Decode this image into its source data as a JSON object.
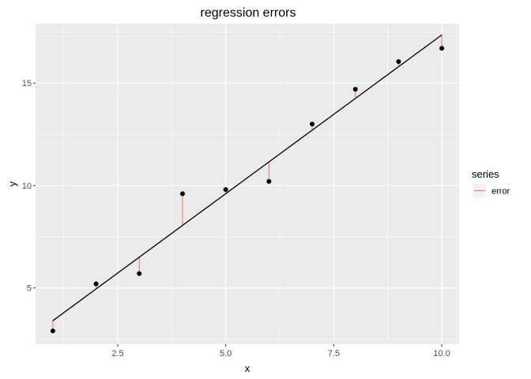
{
  "chart_data": {
    "type": "scatter",
    "title": "regression errors",
    "xlabel": "x",
    "ylabel": "y",
    "xlim": [
      0.6,
      10.4
    ],
    "ylim": [
      2.25,
      17.9
    ],
    "x_ticks": [
      2.5,
      5.0,
      7.5,
      10.0
    ],
    "x_tick_labels": [
      "2.5",
      "5.0",
      "7.5",
      "10.0"
    ],
    "y_ticks": [
      5,
      10,
      15
    ],
    "y_tick_labels": [
      "5",
      "10",
      "15"
    ],
    "grid": true,
    "points": {
      "x": [
        1,
        2,
        3,
        4,
        5,
        6,
        7,
        8,
        9,
        10
      ],
      "y": [
        2.9,
        5.2,
        5.7,
        9.6,
        9.8,
        10.2,
        13.0,
        14.7,
        16.05,
        16.7
      ]
    },
    "fit_line": {
      "x": [
        1,
        10
      ],
      "y": [
        3.4,
        17.35
      ]
    },
    "legend": {
      "title": "series",
      "position": "right",
      "entries": [
        {
          "label": "error",
          "color": "#F8766D"
        }
      ]
    },
    "colors": {
      "panel": "#EBEBEB",
      "grid": "#FFFFFF",
      "error": "#F8766D",
      "points": "#000000",
      "line": "#000000"
    }
  }
}
